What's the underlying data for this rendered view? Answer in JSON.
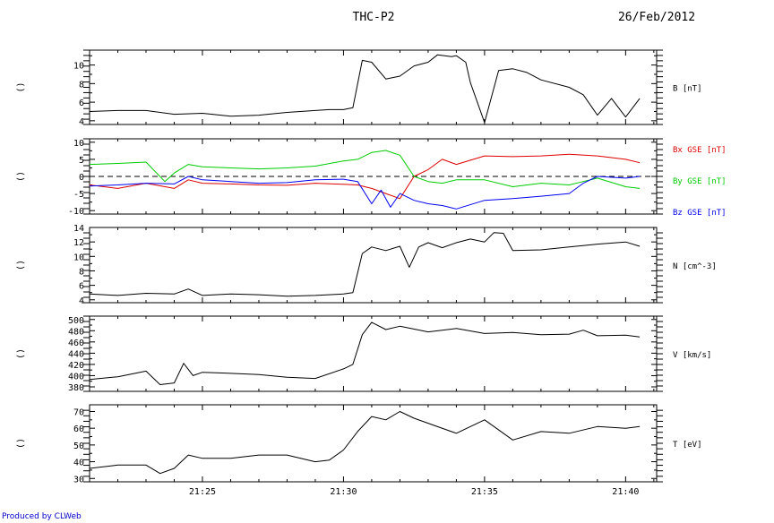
{
  "header": {
    "title": "THC-P2",
    "date": "26/Feb/2012"
  },
  "credit": "Produced by CLWeb",
  "chart_data": [
    {
      "type": "line",
      "panel_label": "B [nT]",
      "side_label": "()",
      "xlim": [
        21.35,
        21.685
      ],
      "ylim": [
        3.6,
        11.6
      ],
      "yticks": [
        4,
        6,
        8,
        10
      ],
      "xticks": [
        "21:25",
        "21:30",
        "21:35",
        "21:40"
      ],
      "series": [
        {
          "color": "#000000",
          "x": [
            "21:21",
            "21:22",
            "21:23",
            "21:24",
            "21:25",
            "21:26",
            "21:27",
            "21:28",
            "21:29",
            "21:29:30",
            "21:30",
            "21:30:20",
            "21:30:40",
            "21:31",
            "21:31:30",
            "21:32",
            "21:32:30",
            "21:33",
            "21:33:20",
            "21:33:50",
            "21:34",
            "21:34:20",
            "21:34:30",
            "21:35",
            "21:35:30",
            "21:36",
            "21:36:30",
            "21:37",
            "21:38",
            "21:38:30",
            "21:39",
            "21:39:30",
            "21:40",
            "21:40:30"
          ],
          "y": [
            5,
            5.1,
            5.1,
            4.7,
            4.8,
            4.5,
            4.6,
            4.9,
            5.1,
            5.2,
            5.2,
            5.4,
            10.5,
            10.3,
            8.5,
            8.8,
            9.9,
            10.3,
            11.1,
            10.9,
            11,
            10.3,
            8.1,
            3.8,
            9.4,
            9.6,
            9.2,
            8.4,
            7.6,
            6.8,
            4.6,
            6.4,
            4.4,
            6.4
          ]
        }
      ]
    },
    {
      "type": "line",
      "panel_label": "",
      "side_label": "()",
      "xlim": [
        21.35,
        21.685
      ],
      "ylim": [
        -11,
        11
      ],
      "yticks": [
        -10,
        -5,
        0,
        5,
        10
      ],
      "xticks": [
        "21:25",
        "21:30",
        "21:35",
        "21:40"
      ],
      "zero_line": true,
      "series": [
        {
          "name": "Bx GSE [nT]",
          "color": "#dd0000",
          "x": [
            "21:21",
            "21:22",
            "21:23",
            "21:24",
            "21:24:30",
            "21:25",
            "21:26",
            "21:27",
            "21:28",
            "21:29",
            "21:30",
            "21:30:30",
            "21:31",
            "21:31:30",
            "21:32",
            "21:32:30",
            "21:33",
            "21:33:30",
            "21:34",
            "21:35",
            "21:36",
            "21:37",
            "21:38",
            "21:39",
            "21:40",
            "21:40:30"
          ],
          "y": [
            -2.5,
            -3.5,
            -2,
            -3.5,
            -1,
            -2,
            -2.2,
            -2.5,
            -2.6,
            -2,
            -2.3,
            -2.5,
            -3.5,
            -5,
            -6.5,
            0,
            2,
            5,
            3.5,
            6,
            5.8,
            6,
            6.5,
            6,
            5,
            4
          ]
        },
        {
          "name": "By GSE [nT]",
          "color": "#00cc00",
          "x": [
            "21:21",
            "21:22",
            "21:23",
            "21:23:40",
            "21:24",
            "21:24:30",
            "21:25",
            "21:26",
            "21:27",
            "21:28",
            "21:29",
            "21:30",
            "21:30:30",
            "21:31",
            "21:31:30",
            "21:32",
            "21:32:30",
            "21:33",
            "21:33:30",
            "21:34",
            "21:35",
            "21:36",
            "21:37",
            "21:38",
            "21:38:30",
            "21:39",
            "21:40",
            "21:40:30"
          ],
          "y": [
            3.5,
            3.8,
            4.2,
            -1.5,
            1,
            3.5,
            2.8,
            2.5,
            2.2,
            2.5,
            3,
            4.5,
            5,
            7,
            7.6,
            6.2,
            0,
            -1.5,
            -2,
            -1,
            -1,
            -3,
            -2,
            -2.5,
            -1.5,
            -0.5,
            -3,
            -3.5
          ]
        },
        {
          "name": "Bz GSE [nT]",
          "color": "#0000ee",
          "x": [
            "21:21",
            "21:22",
            "21:23",
            "21:24",
            "21:24:30",
            "21:25",
            "21:26",
            "21:27",
            "21:28",
            "21:29",
            "21:30",
            "21:30:30",
            "21:31",
            "21:31:20",
            "21:31:40",
            "21:32",
            "21:32:30",
            "21:33",
            "21:33:30",
            "21:34",
            "21:35",
            "21:36",
            "21:37",
            "21:38",
            "21:38:30",
            "21:39",
            "21:40",
            "21:40:30"
          ],
          "y": [
            -2.8,
            -2.5,
            -2,
            -2.2,
            0,
            -1,
            -1.5,
            -2,
            -1.8,
            -1,
            -0.8,
            -1.5,
            -8,
            -4,
            -9,
            -5,
            -7,
            -8,
            -8.5,
            -9.5,
            -7,
            -6.5,
            -5.8,
            -5,
            -2,
            0,
            -0.5,
            0
          ]
        }
      ]
    },
    {
      "type": "line",
      "panel_label": "N [cm^-3]",
      "side_label": "()",
      "xlim": [
        21.35,
        21.685
      ],
      "ylim": [
        3.6,
        14
      ],
      "yticks": [
        4,
        6,
        8,
        10,
        12,
        14
      ],
      "xticks": [
        "21:25",
        "21:30",
        "21:35",
        "21:40"
      ],
      "series": [
        {
          "color": "#000000",
          "x": [
            "21:21",
            "21:22",
            "21:23",
            "21:24",
            "21:24:30",
            "21:25",
            "21:26",
            "21:27",
            "21:28",
            "21:29",
            "21:30",
            "21:30:20",
            "21:30:40",
            "21:31",
            "21:31:30",
            "21:32",
            "21:32:20",
            "21:32:40",
            "21:33",
            "21:33:30",
            "21:34",
            "21:34:30",
            "21:35",
            "21:35:20",
            "21:35:40",
            "21:36",
            "21:37",
            "21:38",
            "21:39",
            "21:40",
            "21:40:30"
          ],
          "y": [
            4.8,
            4.6,
            4.9,
            4.8,
            5.5,
            4.6,
            4.8,
            4.7,
            4.5,
            4.6,
            4.8,
            5,
            10.4,
            11.3,
            10.8,
            11.4,
            8.5,
            11.3,
            11.9,
            11.2,
            11.9,
            12.4,
            12,
            13.3,
            13.2,
            10.8,
            10.9,
            11.3,
            11.7,
            12,
            11.4
          ]
        }
      ]
    },
    {
      "type": "line",
      "panel_label": "V [km/s]",
      "side_label": "()",
      "xlim": [
        21.35,
        21.685
      ],
      "ylim": [
        372,
        506
      ],
      "yticks": [
        380,
        400,
        420,
        440,
        460,
        480,
        500
      ],
      "xticks": [
        "21:25",
        "21:30",
        "21:35",
        "21:40"
      ],
      "series": [
        {
          "color": "#000000",
          "x": [
            "21:21",
            "21:22",
            "21:23",
            "21:23:30",
            "21:24",
            "21:24:20",
            "21:24:40",
            "21:25",
            "21:26",
            "21:27",
            "21:28",
            "21:29",
            "21:30",
            "21:30:20",
            "21:30:40",
            "21:31",
            "21:31:30",
            "21:32",
            "21:33",
            "21:34",
            "21:35",
            "21:36",
            "21:37",
            "21:38",
            "21:38:30",
            "21:39",
            "21:40",
            "21:40:30"
          ],
          "y": [
            393,
            398,
            408,
            384,
            387,
            422,
            400,
            406,
            404,
            402,
            397,
            395,
            412,
            420,
            473,
            495,
            482,
            488,
            478,
            484,
            475,
            477,
            473,
            474,
            481,
            471,
            472,
            469
          ]
        }
      ]
    },
    {
      "type": "line",
      "panel_label": "T [eV]",
      "side_label": "()",
      "xlim": [
        21.35,
        21.685
      ],
      "ylim": [
        28,
        74
      ],
      "yticks": [
        30,
        40,
        50,
        60,
        70
      ],
      "xticks": [
        "21:25",
        "21:30",
        "21:35",
        "21:40"
      ],
      "series": [
        {
          "color": "#000000",
          "x": [
            "21:21",
            "21:22",
            "21:23",
            "21:23:30",
            "21:24",
            "21:24:30",
            "21:25",
            "21:26",
            "21:27",
            "21:28",
            "21:29",
            "21:29:30",
            "21:30",
            "21:30:30",
            "21:31",
            "21:31:30",
            "21:32",
            "21:32:30",
            "21:33",
            "21:34",
            "21:35",
            "21:36",
            "21:37",
            "21:38",
            "21:39",
            "21:40",
            "21:40:30"
          ],
          "y": [
            36,
            38,
            38,
            33,
            36,
            44,
            42,
            42,
            44,
            44,
            40,
            41,
            47,
            58,
            67,
            65,
            70,
            66,
            63,
            57,
            65,
            53,
            58,
            57,
            61,
            60,
            61
          ]
        }
      ]
    }
  ]
}
